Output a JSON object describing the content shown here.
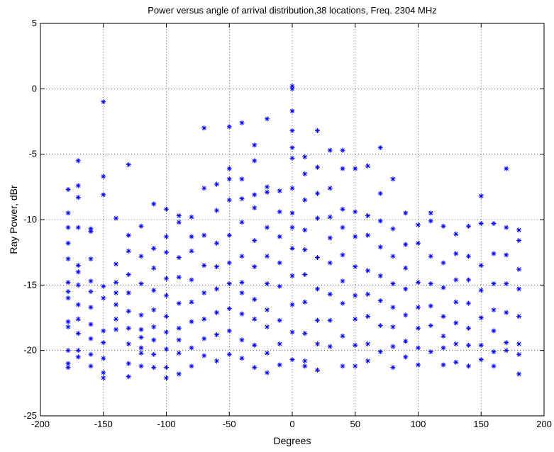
{
  "chart_data": {
    "type": "scatter",
    "title": "Power versus angle of arrival distribution,38 locations, Freq. 2304 MHz",
    "x_label": "Degrees",
    "y_label": "Ray Power, dBr",
    "xlim": [
      -200,
      200
    ],
    "ylim": [
      -25,
      5
    ],
    "xticks": [
      -200,
      -150,
      -100,
      -50,
      0,
      50,
      100,
      150,
      200
    ],
    "yticks": [
      -25,
      -20,
      -15,
      -10,
      -5,
      0,
      5
    ],
    "grid": true,
    "marker": "asterisk",
    "color": "#0000ff",
    "x": [
      -178,
      -178,
      -178,
      -178,
      -178,
      -178,
      -178,
      -178,
      -178,
      -178,
      -178,
      -178,
      -178,
      -170,
      -170,
      -170,
      -170,
      -170,
      -170,
      -170,
      -170,
      -170,
      -170,
      -170,
      -170,
      -160,
      -160,
      -160,
      -160,
      -160,
      -160,
      -160,
      -160,
      -160,
      -160,
      -150,
      -150,
      -150,
      -150,
      -150,
      -150,
      -150,
      -150,
      -150,
      -150,
      -140,
      -140,
      -140,
      -140,
      -140,
      -140,
      -140,
      -130,
      -130,
      -130,
      -130,
      -130,
      -130,
      -130,
      -130,
      -130,
      -130,
      -120,
      -120,
      -120,
      -120,
      -120,
      -120,
      -120,
      -120,
      -120,
      -110,
      -110,
      -110,
      -110,
      -110,
      -110,
      -110,
      -110,
      -110,
      -100,
      -100,
      -100,
      -100,
      -100,
      -100,
      -100,
      -100,
      -100,
      -100,
      -90,
      -90,
      -90,
      -90,
      -90,
      -90,
      -90,
      -90,
      -90,
      -80,
      -80,
      -80,
      -80,
      -80,
      -80,
      -80,
      -80,
      -70,
      -70,
      -70,
      -70,
      -70,
      -70,
      -70,
      -70,
      -60,
      -60,
      -60,
      -60,
      -60,
      -60,
      -60,
      -60,
      -50,
      -50,
      -50,
      -50,
      -50,
      -50,
      -50,
      -50,
      -50,
      -50,
      -40,
      -40,
      -40,
      -40,
      -40,
      -40,
      -40,
      -40,
      -40,
      -40,
      -30,
      -30,
      -30,
      -30,
      -30,
      -30,
      -30,
      -30,
      -30,
      -30,
      -20,
      -20,
      -20,
      -20,
      -20,
      -20,
      -20,
      -20,
      -20,
      -20,
      -10,
      -10,
      -10,
      -10,
      -10,
      -10,
      -10,
      -10,
      0,
      0,
      0,
      0,
      0,
      0,
      0,
      0,
      0,
      0,
      0,
      0,
      0,
      0,
      10,
      10,
      10,
      10,
      10,
      10,
      10,
      10,
      10,
      10,
      20,
      20,
      20,
      20,
      20,
      20,
      20,
      20,
      20,
      30,
      30,
      30,
      30,
      30,
      30,
      30,
      30,
      40,
      40,
      40,
      40,
      40,
      40,
      40,
      40,
      40,
      50,
      50,
      50,
      50,
      50,
      50,
      50,
      50,
      60,
      60,
      60,
      60,
      60,
      60,
      60,
      60,
      70,
      70,
      70,
      70,
      70,
      70,
      70,
      70,
      80,
      80,
      80,
      80,
      80,
      80,
      80,
      80,
      90,
      90,
      90,
      90,
      90,
      90,
      90,
      100,
      100,
      100,
      100,
      100,
      100,
      100,
      110,
      110,
      110,
      110,
      110,
      110,
      110,
      120,
      120,
      120,
      120,
      120,
      120,
      120,
      130,
      130,
      130,
      130,
      130,
      130,
      130,
      140,
      140,
      140,
      140,
      140,
      140,
      140,
      150,
      150,
      150,
      150,
      150,
      150,
      150,
      160,
      160,
      160,
      160,
      160,
      160,
      160,
      170,
      170,
      170,
      170,
      170,
      170,
      170,
      180,
      180,
      180,
      180,
      180,
      180,
      180,
      180
    ],
    "values": [
      -7.7,
      -9.5,
      -10.6,
      -11.8,
      -13,
      -14.8,
      -15.5,
      -16,
      -17.8,
      -18.2,
      -20,
      -21,
      -21.3,
      -5.5,
      -7.4,
      -8.3,
      -10.6,
      -13.5,
      -14,
      -15,
      -16.5,
      -17.6,
      -18.7,
      -20,
      -20.5,
      -10.7,
      -10.9,
      -13,
      -14.7,
      -15.5,
      -16.7,
      -18,
      -19.1,
      -20.3,
      -21.2,
      -1,
      -6.7,
      -8.1,
      -15.1,
      -16,
      -18.5,
      -19.4,
      -20.6,
      -21.7,
      -22.1,
      -9.9,
      -13.4,
      -14.8,
      -15.6,
      -16.5,
      -17.6,
      -18.4,
      -5.8,
      -11.2,
      -12.4,
      -14.2,
      -15.6,
      -17,
      -18.3,
      -19.5,
      -21,
      -22,
      -10.5,
      -12.8,
      -14.9,
      -17.3,
      -18.4,
      -19,
      -19.8,
      -20.2,
      -21.2,
      -8.8,
      -12.2,
      -13.7,
      -15.4,
      -16.9,
      -18.2,
      -19.2,
      -20.3,
      -21.3,
      -9.2,
      -11.3,
      -12.5,
      -14.5,
      -15.8,
      -17.4,
      -18.6,
      -19.9,
      -21.3,
      -22.1,
      -9.7,
      -10.2,
      -12.9,
      -14.4,
      -16.4,
      -18.3,
      -19.2,
      -20.2,
      -21.8,
      -9.8,
      -11.3,
      -12.4,
      -14.6,
      -16.3,
      -17.8,
      -19.8,
      -21.2,
      -3,
      -7.6,
      -11.2,
      -13.5,
      -15.6,
      -17.6,
      -19.1,
      -20.4,
      -7.3,
      -9.3,
      -11.8,
      -13.6,
      -15.3,
      -17.1,
      -18.8,
      -20.8,
      -2.9,
      -6.1,
      -6.9,
      -8.5,
      -11.2,
      -13.3,
      -14.9,
      -16.8,
      -18.5,
      -20.3,
      -2.6,
      -6.9,
      -8.4,
      -10.2,
      -12.8,
      -14.8,
      -15.6,
      -17.2,
      -19.2,
      -20.6,
      -4.3,
      -5.5,
      -8.1,
      -9.1,
      -11.6,
      -13.6,
      -16.1,
      -17.6,
      -19.6,
      -21.3,
      -2.3,
      -7.5,
      -7.9,
      -10.6,
      -12.8,
      -14.9,
      -16.9,
      -18.2,
      -20.2,
      -21.7,
      -7.8,
      -9.4,
      -11.3,
      -13.3,
      -15.1,
      -17.7,
      -19.5,
      -21.1,
      0.2,
      0,
      -1.7,
      -3.2,
      -4.5,
      -5.3,
      -7.6,
      -9.5,
      -10.6,
      -12.2,
      -14.3,
      -16.5,
      -18.6,
      -20.7,
      -5.2,
      -6.5,
      -8.5,
      -10.8,
      -12.3,
      -14.2,
      -16.3,
      -18.7,
      -20.8,
      -21.2,
      -3.2,
      -6,
      -8,
      -9.9,
      -12.9,
      -15.3,
      -17.7,
      -19.5,
      -21.5,
      -4.7,
      -7.6,
      -9.8,
      -11.4,
      -13.3,
      -15.7,
      -17.7,
      -19.7,
      -4.7,
      -6.1,
      -9.2,
      -10.6,
      -12.7,
      -14.7,
      -16.4,
      -18.9,
      -21.2,
      -6.1,
      -9.4,
      -11.3,
      -13.6,
      -15.8,
      -17.6,
      -19.6,
      -21.2,
      -5.9,
      -9.7,
      -11.2,
      -13.9,
      -15.7,
      -17.4,
      -19.5,
      -20.8,
      -4.5,
      -8,
      -10.1,
      -12.1,
      -14.3,
      -16.2,
      -18.1,
      -20.1,
      -6.9,
      -10.7,
      -12.8,
      -14.9,
      -16.7,
      -18.2,
      -19.7,
      -21.3,
      -9.5,
      -11.9,
      -13.7,
      -15.3,
      -17.3,
      -19.3,
      -20.5,
      -10.4,
      -11.8,
      -14.8,
      -16.7,
      -18.3,
      -19.8,
      -21.1,
      -9.5,
      -10.1,
      -12.8,
      -14.9,
      -16.6,
      -18.1,
      -20.1,
      -10.5,
      -13.3,
      -15.2,
      -17.4,
      -18.9,
      -19.8,
      -21.1,
      -11.1,
      -12.6,
      -14.6,
      -16.3,
      -17.9,
      -19.5,
      -20.9,
      -10.5,
      -12.8,
      -14.6,
      -16.4,
      -18.3,
      -19.6,
      -21.2,
      -8.2,
      -10.3,
      -13.5,
      -15.4,
      -17.5,
      -19.6,
      -20.7,
      -10.3,
      -12.6,
      -14.9,
      -16.9,
      -18.5,
      -20.1,
      -21.2,
      -6.1,
      -10.6,
      -12.7,
      -14.9,
      -17.1,
      -19.4,
      -20,
      -10.8,
      -11.6,
      -13.8,
      -15.3,
      -17.4,
      -19.5,
      -20.3,
      -21.8
    ]
  }
}
